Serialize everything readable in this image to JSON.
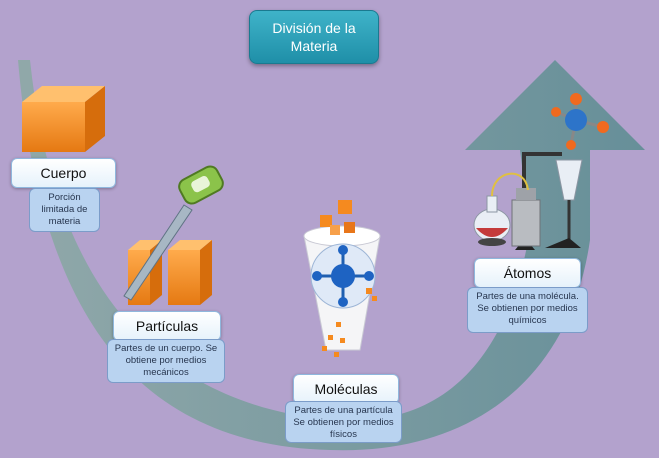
{
  "title": "División de la Materia",
  "stages": [
    {
      "label": "Cuerpo",
      "description": "Porción limitada de materia"
    },
    {
      "label": "Partículas",
      "description": "Partes de un cuerpo. Se obtiene por medios mecánicos"
    },
    {
      "label": "Moléculas",
      "description": "Partes de una partícula Se obtienen por medios físicos"
    },
    {
      "label": "Átomos",
      "description": "Partes de una molécula. Se obtienen por medios químicos"
    }
  ],
  "colors": {
    "background": "#b3a2cd",
    "arrow": "#6e9a9a",
    "title": "#2aa3bd",
    "label_border": "#8fb7dd",
    "desc_fill": "#b9d3f0",
    "cube": "#f08a24"
  }
}
